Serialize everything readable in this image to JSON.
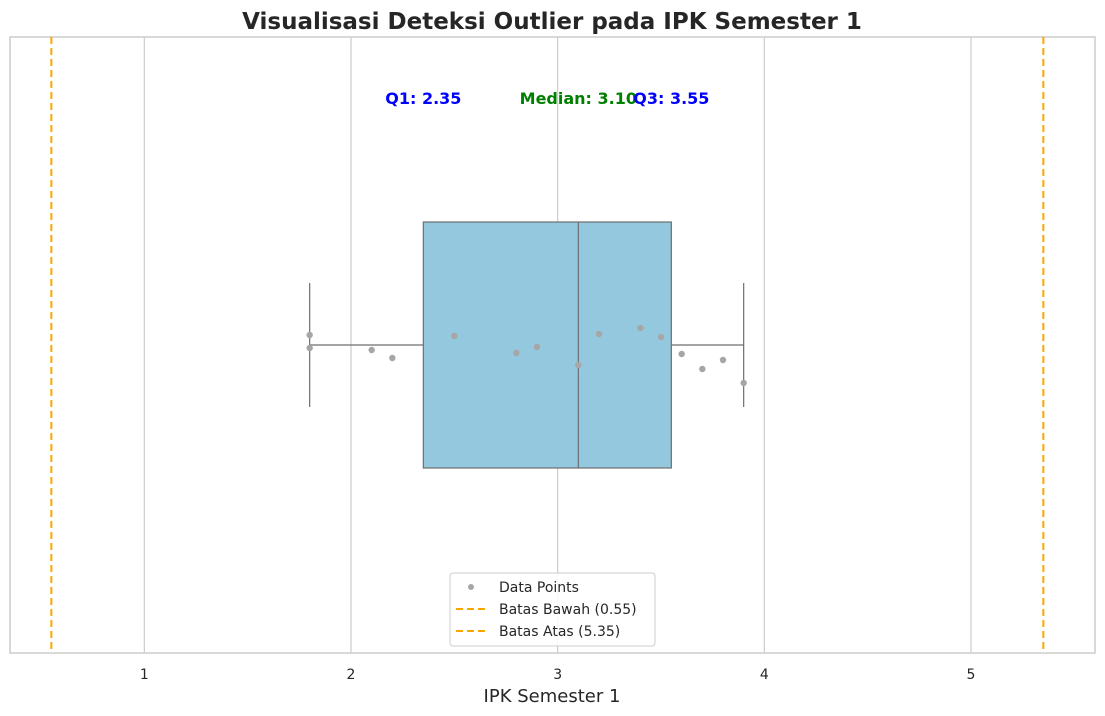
{
  "chart_data": {
    "type": "box",
    "title": "Visualisasi Deteksi Outlier pada IPK Semester 1",
    "xlabel": "IPK Semester 1",
    "ylabel": "",
    "xlim": [
      0.35,
      5.6
    ],
    "xticks": [
      1,
      2,
      3,
      4,
      5
    ],
    "grid": "vertical",
    "box": {
      "q1": 2.35,
      "median": 3.1,
      "q3": 3.55,
      "whisker_low": 1.8,
      "whisker_high": 3.9,
      "fill": "#93c8de",
      "edge": "#6e6e6e"
    },
    "points": {
      "name": "Data Points",
      "color": "#a6a6a6",
      "values": [
        1.8,
        1.8,
        2.1,
        2.2,
        2.5,
        2.8,
        2.9,
        3.1,
        3.2,
        3.4,
        3.5,
        3.6,
        3.7,
        3.8,
        3.9
      ],
      "jitter": [
        -0.1,
        0.03,
        0.05,
        0.13,
        -0.09,
        0.08,
        0.02,
        0.2,
        -0.11,
        -0.17,
        -0.08,
        0.09,
        0.24,
        0.15,
        0.38
      ]
    },
    "lines": [
      {
        "name": "Batas Bawah (0.55)",
        "value": 0.55,
        "color": "#ffa500",
        "style": "dashed"
      },
      {
        "name": "Batas Atas (5.35)",
        "value": 5.35,
        "color": "#ffa500",
        "style": "dashed"
      }
    ],
    "annotations": [
      {
        "text": "Q1: 2.35",
        "x": 2.35,
        "color": "#0000ff"
      },
      {
        "text": "Median: 3.10",
        "x": 3.1,
        "color": "#008000"
      },
      {
        "text": "Q3: 3.55",
        "x": 3.55,
        "color": "#0000ff"
      }
    ],
    "legend": {
      "placement": "lower-center",
      "entries": [
        "Data Points",
        "Batas Bawah (0.55)",
        "Batas Atas (5.35)"
      ]
    }
  }
}
